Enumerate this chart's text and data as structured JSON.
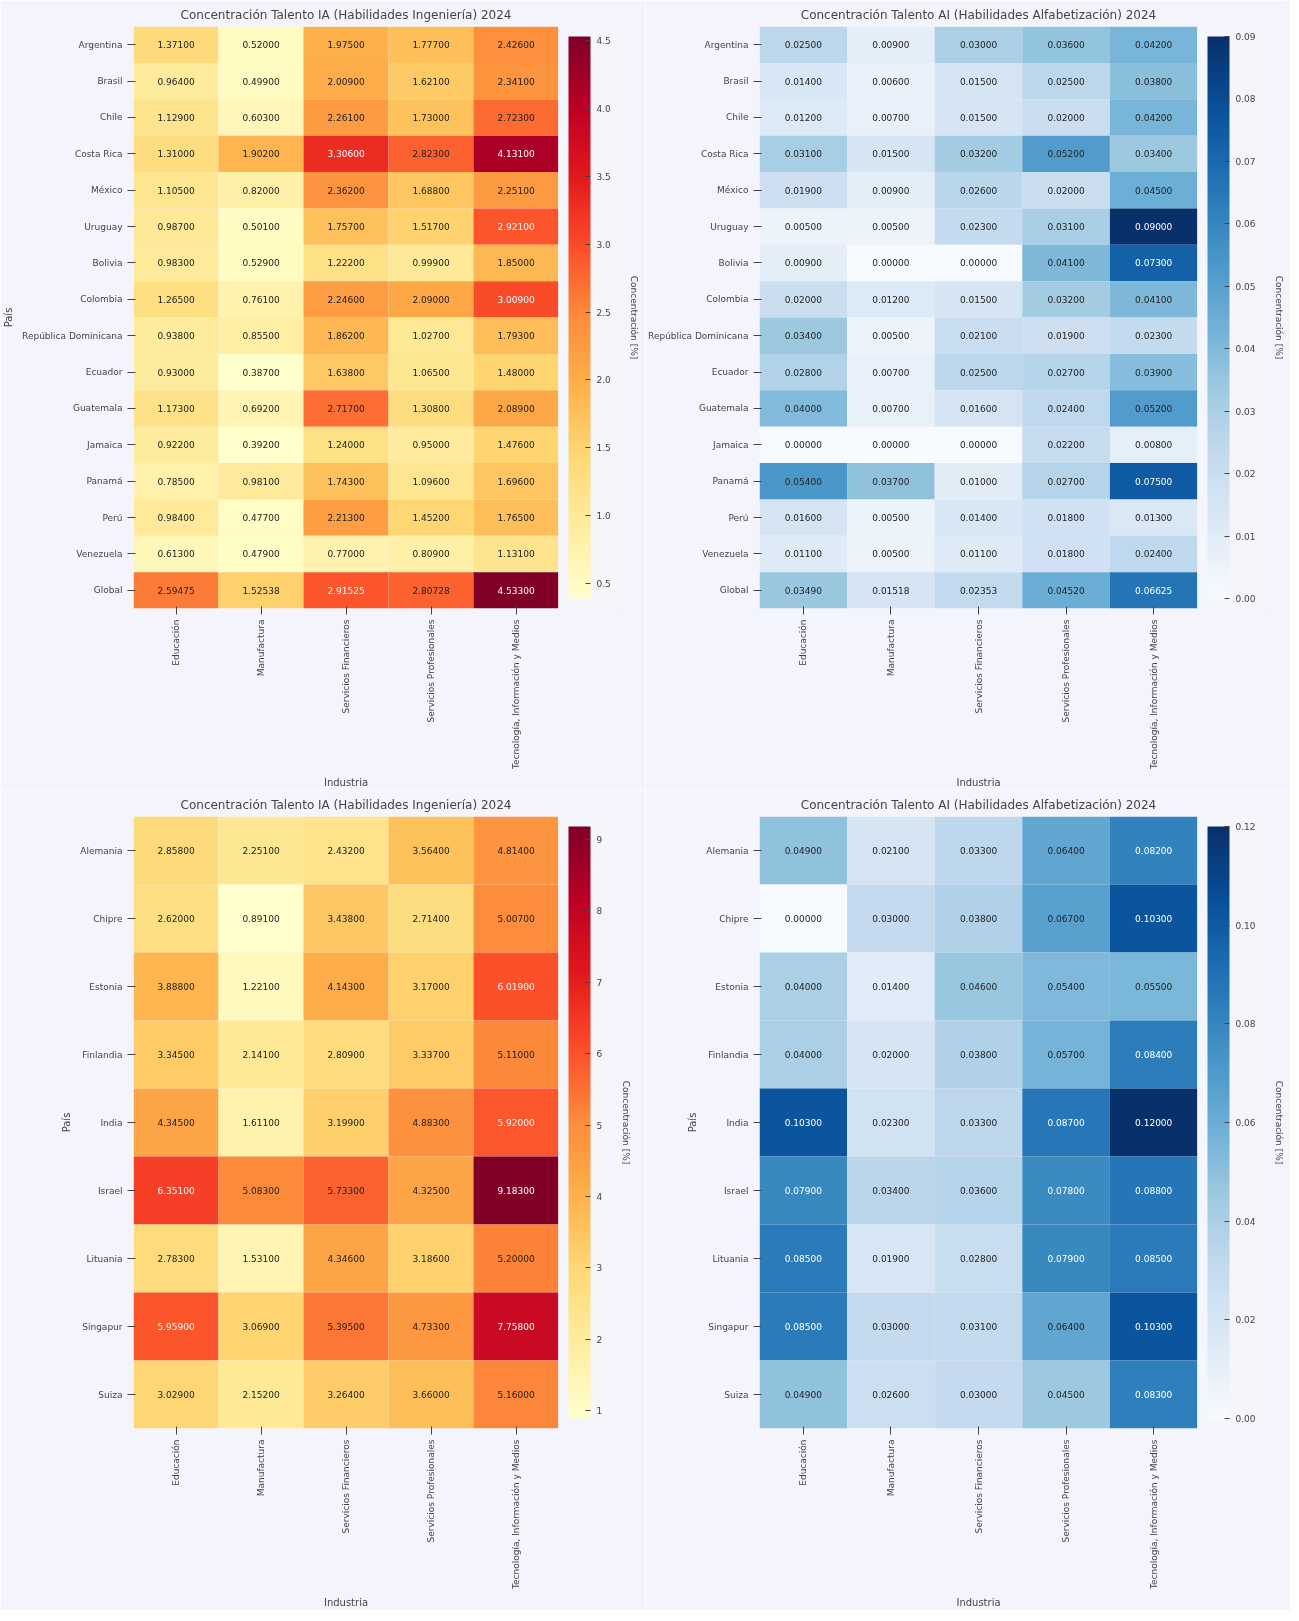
{
  "chart_data": [
    {
      "type": "heatmap",
      "title": "Concentración Talento IA (Habilidades Ingeniería) 2024",
      "xlabel": "Industria",
      "ylabel": "País",
      "clabel": "Concentración [%]",
      "categories": [
        "Educación",
        "Manufactura",
        "Servicios Financieros",
        "Servicios Profesionales",
        "Tecnología, Información y Medios"
      ],
      "y_categories": [
        "Argentina",
        "Brasil",
        "Chile",
        "Costa Rica",
        "México",
        "Uruguay",
        "Bolivia",
        "Colombia",
        "República Dominicana",
        "Ecuador",
        "Guatemala",
        "Jamaica",
        "Panamá",
        "Perú",
        "Venezuela",
        "Global"
      ],
      "cells": [
        [
          1.371,
          0.52,
          1.975,
          1.777,
          2.426
        ],
        [
          0.964,
          0.499,
          2.009,
          1.621,
          2.341
        ],
        [
          1.129,
          0.603,
          2.261,
          1.73,
          2.723
        ],
        [
          1.31,
          1.902,
          3.306,
          2.823,
          4.131
        ],
        [
          1.105,
          0.82,
          2.362,
          1.688,
          2.251
        ],
        [
          0.987,
          0.501,
          1.757,
          1.517,
          2.921
        ],
        [
          0.983,
          0.529,
          1.222,
          0.999,
          1.85
        ],
        [
          1.265,
          0.761,
          2.246,
          2.09,
          3.009
        ],
        [
          0.938,
          0.855,
          1.862,
          1.027,
          1.793
        ],
        [
          0.93,
          0.387,
          1.638,
          1.065,
          1.48
        ],
        [
          1.173,
          0.692,
          2.717,
          1.308,
          2.089
        ],
        [
          0.922,
          0.392,
          1.24,
          0.95,
          1.476
        ],
        [
          0.785,
          0.981,
          1.743,
          1.096,
          1.696
        ],
        [
          0.984,
          0.477,
          2.213,
          1.452,
          1.765
        ],
        [
          0.613,
          0.479,
          0.77,
          0.809,
          1.131
        ],
        [
          2.59475,
          1.52538,
          2.91525,
          2.80728,
          4.533
        ]
      ],
      "cell_labels": [
        [
          "1.37100",
          "0.52000",
          "1.97500",
          "1.77700",
          "2.42600"
        ],
        [
          "0.96400",
          "0.49900",
          "2.00900",
          "1.62100",
          "2.34100"
        ],
        [
          "1.12900",
          "0.60300",
          "2.26100",
          "1.73000",
          "2.72300"
        ],
        [
          "1.31000",
          "1.90200",
          "3.30600",
          "2.82300",
          "4.13100"
        ],
        [
          "1.10500",
          "0.82000",
          "2.36200",
          "1.68800",
          "2.25100"
        ],
        [
          "0.98700",
          "0.50100",
          "1.75700",
          "1.51700",
          "2.92100"
        ],
        [
          "0.98300",
          "0.52900",
          "1.22200",
          "0.99900",
          "1.85000"
        ],
        [
          "1.26500",
          "0.76100",
          "2.24600",
          "2.09000",
          "3.00900"
        ],
        [
          "0.93800",
          "0.85500",
          "1.86200",
          "1.02700",
          "1.79300"
        ],
        [
          "0.93000",
          "0.38700",
          "1.63800",
          "1.06500",
          "1.48000"
        ],
        [
          "1.17300",
          "0.69200",
          "2.71700",
          "1.30800",
          "2.08900"
        ],
        [
          "0.92200",
          "0.39200",
          "1.24000",
          "0.95000",
          "1.47600"
        ],
        [
          "0.78500",
          "0.98100",
          "1.74300",
          "1.09600",
          "1.69600"
        ],
        [
          "0.98400",
          "0.47700",
          "2.21300",
          "1.45200",
          "1.76500"
        ],
        [
          "0.61300",
          "0.47900",
          "0.77000",
          "0.80900",
          "1.13100"
        ],
        [
          "2.59475",
          "1.52538",
          "2.91525",
          "2.80728",
          "4.53300"
        ]
      ],
      "clim": [
        0.387,
        4.533
      ],
      "cticks": [
        0.5,
        {
          "value": 1,
          "label": "1.0"
        },
        1.5,
        {
          "value": 2,
          "label": "2.0"
        },
        2.5,
        {
          "value": 3,
          "label": "3.0"
        },
        3.5,
        {
          "value": 4,
          "label": "4.0"
        },
        4.5
      ]
    },
    {
      "type": "heatmap",
      "title": "Concentración Talento AI (Habilidades Alfabetización) 2024",
      "xlabel": "Industria",
      "clabel": "Concentración [%]",
      "categories": [
        "Educación",
        "Manufactura",
        "Servicios Financieros",
        "Servicios Profesionales",
        "Tecnología, Información y Medios"
      ],
      "y_categories": [
        "Argentina",
        "Brasil",
        "Chile",
        "Costa Rica",
        "México",
        "Uruguay",
        "Bolivia",
        "Colombia",
        "República Dominicana",
        "Ecuador",
        "Guatemala",
        "Jamaica",
        "Panamá",
        "Perú",
        "Venezuela",
        "Global"
      ],
      "cells": [
        [
          0.025,
          0.009,
          0.03,
          0.036,
          0.042
        ],
        [
          0.014,
          0.006,
          0.015,
          0.025,
          0.038
        ],
        [
          0.012,
          0.007,
          0.015,
          0.02,
          0.042
        ],
        [
          0.031,
          0.015,
          0.032,
          0.052,
          0.034
        ],
        [
          0.019,
          0.009,
          0.026,
          0.02,
          0.045
        ],
        [
          0.005,
          0.005,
          0.023,
          0.031,
          0.09
        ],
        [
          0.009,
          0.0,
          0.0,
          0.041,
          0.073
        ],
        [
          0.02,
          0.012,
          0.015,
          0.032,
          0.041
        ],
        [
          0.034,
          0.005,
          0.021,
          0.019,
          0.023
        ],
        [
          0.028,
          0.007,
          0.025,
          0.027,
          0.039
        ],
        [
          0.04,
          0.007,
          0.016,
          0.024,
          0.052
        ],
        [
          0.0,
          0.0,
          0.0,
          0.022,
          0.008
        ],
        [
          0.054,
          0.037,
          0.01,
          0.027,
          0.075
        ],
        [
          0.016,
          0.005,
          0.014,
          0.018,
          0.013
        ],
        [
          0.011,
          0.005,
          0.011,
          0.018,
          0.024
        ],
        [
          0.0349,
          0.01518,
          0.02353,
          0.0452,
          0.06625
        ]
      ],
      "cell_labels": [
        [
          "0.02500",
          "0.00900",
          "0.03000",
          "0.03600",
          "0.04200"
        ],
        [
          "0.01400",
          "0.00600",
          "0.01500",
          "0.02500",
          "0.03800"
        ],
        [
          "0.01200",
          "0.00700",
          "0.01500",
          "0.02000",
          "0.04200"
        ],
        [
          "0.03100",
          "0.01500",
          "0.03200",
          "0.05200",
          "0.03400"
        ],
        [
          "0.01900",
          "0.00900",
          "0.02600",
          "0.02000",
          "0.04500"
        ],
        [
          "0.00500",
          "0.00500",
          "0.02300",
          "0.03100",
          "0.09000"
        ],
        [
          "0.00900",
          "0.00000",
          "0.00000",
          "0.04100",
          "0.07300"
        ],
        [
          "0.02000",
          "0.01200",
          "0.01500",
          "0.03200",
          "0.04100"
        ],
        [
          "0.03400",
          "0.00500",
          "0.02100",
          "0.01900",
          "0.02300"
        ],
        [
          "0.02800",
          "0.00700",
          "0.02500",
          "0.02700",
          "0.03900"
        ],
        [
          "0.04000",
          "0.00700",
          "0.01600",
          "0.02400",
          "0.05200"
        ],
        [
          "0.00000",
          "0.00000",
          "0.00000",
          "0.02200",
          "0.00800"
        ],
        [
          "0.05400",
          "0.03700",
          "0.01000",
          "0.02700",
          "0.07500"
        ],
        [
          "0.01600",
          "0.00500",
          "0.01400",
          "0.01800",
          "0.01300"
        ],
        [
          "0.01100",
          "0.00500",
          "0.01100",
          "0.01800",
          "0.02400"
        ],
        [
          "0.03490",
          "0.01518",
          "0.02353",
          "0.04520",
          "0.06625"
        ]
      ],
      "clim": [
        0.0,
        0.09
      ],
      "cticks": [
        {
          "value": 0,
          "label": "0.00"
        },
        {
          "value": 0.01,
          "label": "0.01"
        },
        {
          "value": 0.02,
          "label": "0.02"
        },
        {
          "value": 0.03,
          "label": "0.03"
        },
        {
          "value": 0.04,
          "label": "0.04"
        },
        {
          "value": 0.05,
          "label": "0.05"
        },
        {
          "value": 0.06,
          "label": "0.06"
        },
        {
          "value": 0.07,
          "label": "0.07"
        },
        {
          "value": 0.08,
          "label": "0.08"
        },
        {
          "value": 0.09,
          "label": "0.09"
        }
      ]
    },
    {
      "type": "heatmap",
      "title": "Concentración Talento IA (Habilidades Ingeniería) 2024",
      "xlabel": "Industria",
      "ylabel": "País",
      "clabel": "Concentración [%]",
      "categories": [
        "Educación",
        "Manufactura",
        "Servicios Financieros",
        "Servicios Profesionales",
        "Tecnología, Información y Medios"
      ],
      "y_categories": [
        "Alemania",
        "Chipre",
        "Estonia",
        "Finlandia",
        "India",
        "Israel",
        "Lituania",
        "Singapur",
        "Suiza"
      ],
      "cells": [
        [
          2.858,
          2.251,
          2.432,
          3.564,
          4.814
        ],
        [
          2.62,
          0.891,
          3.438,
          2.714,
          5.007
        ],
        [
          3.888,
          1.221,
          4.143,
          3.17,
          6.019
        ],
        [
          3.345,
          2.141,
          2.809,
          3.337,
          5.11
        ],
        [
          4.345,
          1.611,
          3.199,
          4.883,
          5.92
        ],
        [
          6.351,
          5.083,
          5.733,
          4.325,
          9.183
        ],
        [
          2.783,
          1.531,
          4.346,
          3.186,
          5.2
        ],
        [
          5.959,
          3.069,
          5.395,
          4.733,
          7.758
        ],
        [
          3.029,
          2.152,
          3.264,
          3.66,
          5.16
        ]
      ],
      "cell_labels": [
        [
          "2.85800",
          "2.25100",
          "2.43200",
          "3.56400",
          "4.81400"
        ],
        [
          "2.62000",
          "0.89100",
          "3.43800",
          "2.71400",
          "5.00700"
        ],
        [
          "3.88800",
          "1.22100",
          "4.14300",
          "3.17000",
          "6.01900"
        ],
        [
          "3.34500",
          "2.14100",
          "2.80900",
          "3.33700",
          "5.11000"
        ],
        [
          "4.34500",
          "1.61100",
          "3.19900",
          "4.88300",
          "5.92000"
        ],
        [
          "6.35100",
          "5.08300",
          "5.73300",
          "4.32500",
          "9.18300"
        ],
        [
          "2.78300",
          "1.53100",
          "4.34600",
          "3.18600",
          "5.20000"
        ],
        [
          "5.95900",
          "3.06900",
          "5.39500",
          "4.73300",
          "7.75800"
        ],
        [
          "3.02900",
          "2.15200",
          "3.26400",
          "3.66000",
          "5.16000"
        ]
      ],
      "clim": [
        0.891,
        9.183
      ],
      "cticks": [
        1,
        2,
        3,
        4,
        5,
        6,
        7,
        8,
        9
      ]
    },
    {
      "type": "heatmap",
      "title": "Concentración Talento AI (Habilidades Alfabetización) 2024",
      "xlabel": "Industria",
      "ylabel": "País",
      "clabel": "Concentración [%]",
      "categories": [
        "Educación",
        "Manufactura",
        "Servicios Financieros",
        "Servicios Profesionales",
        "Tecnología, Información y Medios"
      ],
      "y_categories": [
        "Alemania",
        "Chipre",
        "Estonia",
        "Finlandia",
        "India",
        "Israel",
        "Lituania",
        "Singapur",
        "Suiza"
      ],
      "cells": [
        [
          0.049,
          0.021,
          0.033,
          0.064,
          0.082
        ],
        [
          0.0,
          0.03,
          0.038,
          0.067,
          0.103
        ],
        [
          0.04,
          0.014,
          0.046,
          0.054,
          0.055
        ],
        [
          0.04,
          0.02,
          0.038,
          0.057,
          0.084
        ],
        [
          0.103,
          0.023,
          0.033,
          0.087,
          0.12
        ],
        [
          0.079,
          0.034,
          0.036,
          0.078,
          0.088
        ],
        [
          0.085,
          0.019,
          0.028,
          0.079,
          0.085
        ],
        [
          0.085,
          0.03,
          0.031,
          0.064,
          0.103
        ],
        [
          0.049,
          0.026,
          0.03,
          0.045,
          0.083
        ]
      ],
      "cell_labels": [
        [
          "0.04900",
          "0.02100",
          "0.03300",
          "0.06400",
          "0.08200"
        ],
        [
          "0.00000",
          "0.03000",
          "0.03800",
          "0.06700",
          "0.10300"
        ],
        [
          "0.04000",
          "0.01400",
          "0.04600",
          "0.05400",
          "0.05500"
        ],
        [
          "0.04000",
          "0.02000",
          "0.03800",
          "0.05700",
          "0.08400"
        ],
        [
          "0.10300",
          "0.02300",
          "0.03300",
          "0.08700",
          "0.12000"
        ],
        [
          "0.07900",
          "0.03400",
          "0.03600",
          "0.07800",
          "0.08800"
        ],
        [
          "0.08500",
          "0.01900",
          "0.02800",
          "0.07900",
          "0.08500"
        ],
        [
          "0.08500",
          "0.03000",
          "0.03100",
          "0.06400",
          "0.10300"
        ],
        [
          "0.04900",
          "0.02600",
          "0.03000",
          "0.04500",
          "0.08300"
        ]
      ],
      "clim": [
        0.0,
        0.12
      ],
      "cticks": [
        {
          "value": 0,
          "label": "0.00"
        },
        {
          "value": 0.02,
          "label": "0.02"
        },
        {
          "value": 0.04,
          "label": "0.04"
        },
        {
          "value": 0.06,
          "label": "0.06"
        },
        {
          "value": 0.08,
          "label": "0.08"
        },
        {
          "value": 0.1,
          "label": "0.10"
        },
        {
          "value": 0.12,
          "label": "0.12"
        }
      ]
    }
  ]
}
